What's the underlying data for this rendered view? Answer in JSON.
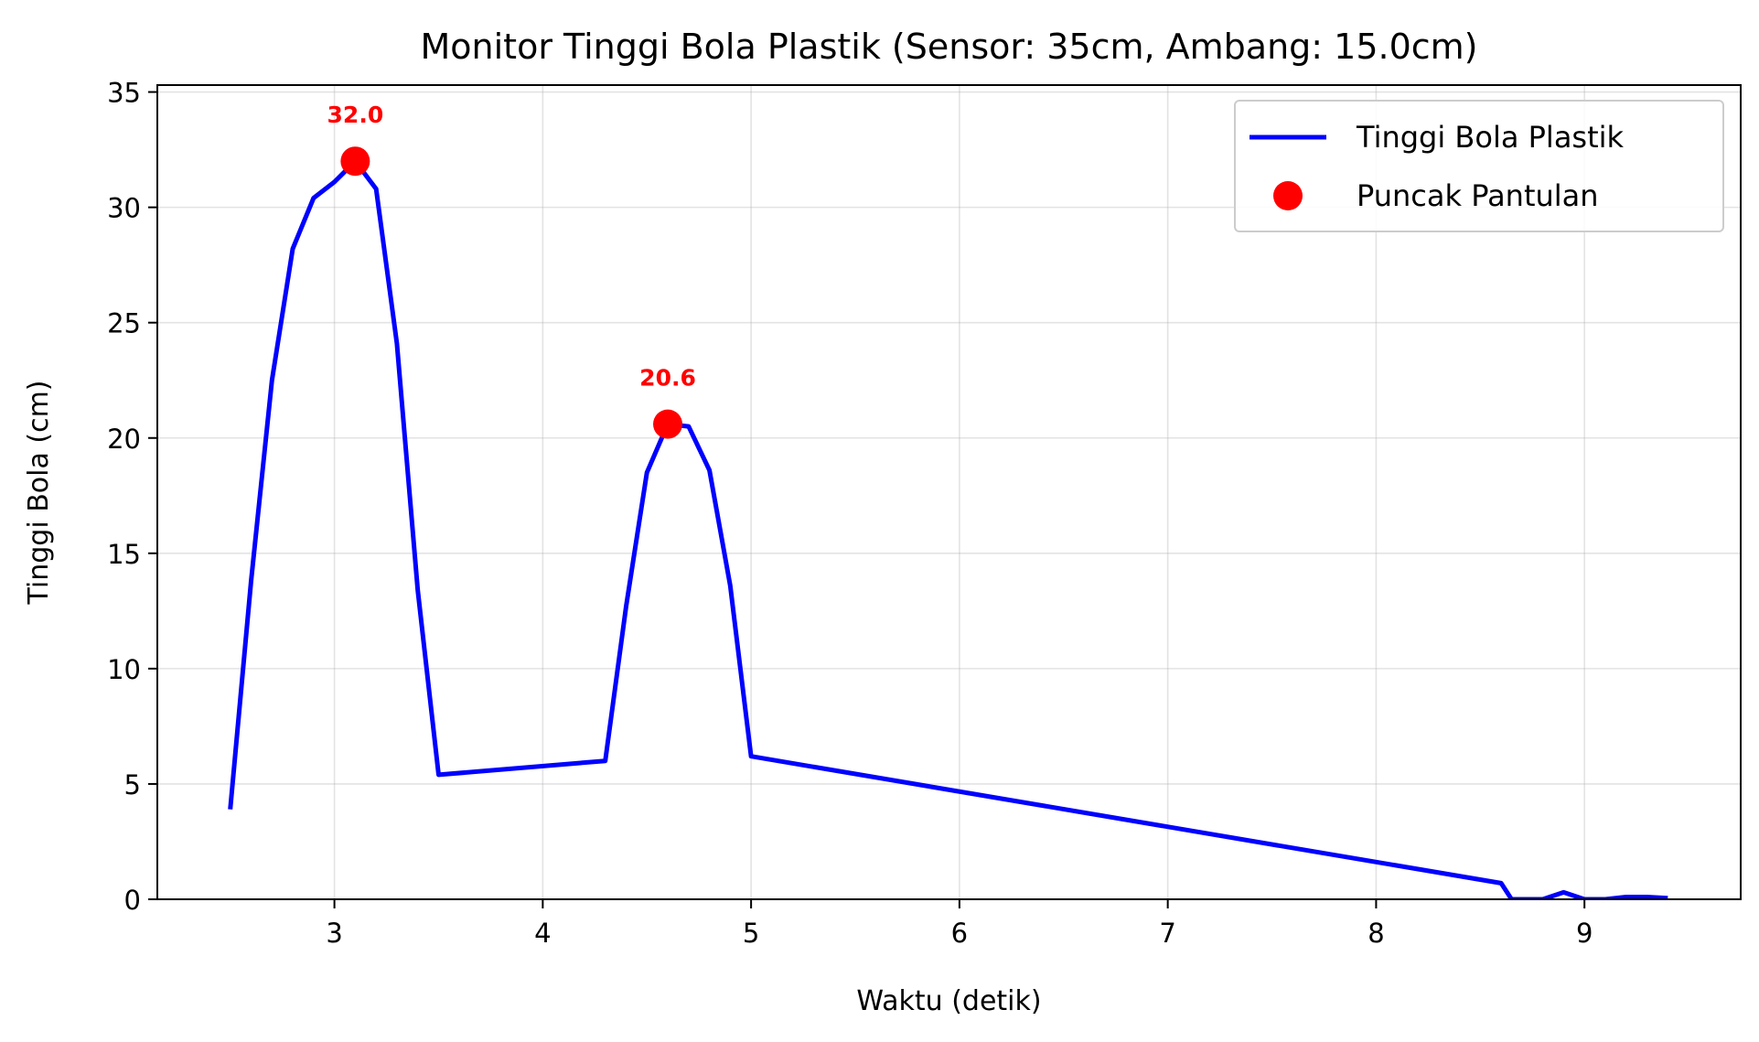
{
  "chart_data": {
    "type": "line",
    "title": "Monitor Tinggi Bola Plastik (Sensor: 35cm, Ambang: 15.0cm)",
    "xlabel": "Waktu (detik)",
    "ylabel": "Tinggi Bola (cm)",
    "xlim": [
      2.15,
      9.75
    ],
    "ylim": [
      0,
      35.3
    ],
    "x_ticks": [
      3,
      4,
      5,
      6,
      7,
      8,
      9
    ],
    "y_ticks": [
      0,
      5,
      10,
      15,
      20,
      25,
      30,
      35
    ],
    "grid": true,
    "legend_position": "top-right",
    "series": [
      {
        "name": "Tinggi Bola Plastik",
        "color": "#0000ff",
        "x": [
          2.5,
          2.6,
          2.7,
          2.8,
          2.9,
          3.0,
          3.1,
          3.2,
          3.3,
          3.4,
          3.5,
          4.3,
          4.4,
          4.5,
          4.6,
          4.7,
          4.8,
          4.9,
          5.0,
          8.6,
          8.65,
          8.8,
          8.9,
          9.0,
          9.1,
          9.2,
          9.3,
          9.4
        ],
        "values": [
          3.9,
          13.8,
          22.5,
          28.2,
          30.4,
          31.1,
          32.0,
          30.8,
          24.1,
          13.4,
          5.4,
          6.0,
          12.7,
          18.5,
          20.6,
          20.5,
          18.6,
          13.6,
          6.2,
          0.7,
          0.0,
          0.0,
          0.3,
          0.0,
          0.0,
          0.1,
          0.1,
          0.05
        ]
      },
      {
        "name": "Puncak Pantulan",
        "color": "#ff0000",
        "marker": "circle",
        "x": [
          3.1,
          4.6
        ],
        "values": [
          32.0,
          20.6
        ],
        "labels": [
          "32.0",
          "20.6"
        ]
      }
    ]
  }
}
